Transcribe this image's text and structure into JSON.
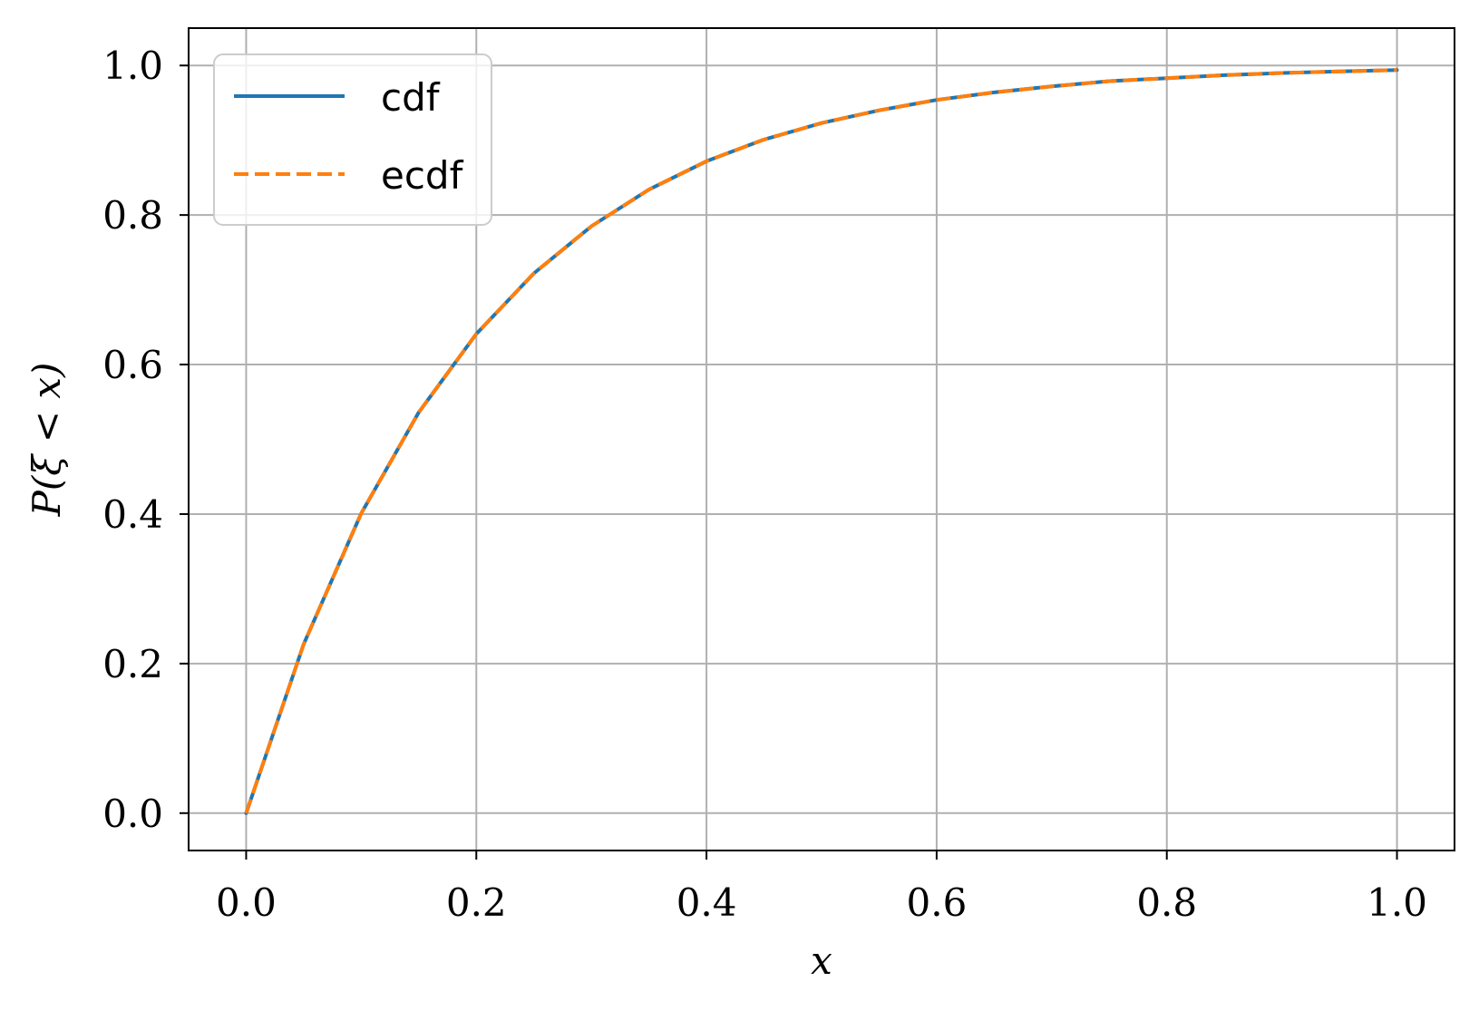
{
  "chart_data": {
    "type": "line",
    "xlabel": "x",
    "ylabel": "P(ξ < x)",
    "xlim": [
      -0.05,
      1.05
    ],
    "ylim": [
      -0.05,
      1.05
    ],
    "xticks": [
      0.0,
      0.2,
      0.4,
      0.6,
      0.8,
      1.0
    ],
    "yticks": [
      0.0,
      0.2,
      0.4,
      0.6,
      0.8,
      1.0
    ],
    "xtick_labels": [
      "0.0",
      "0.2",
      "0.4",
      "0.6",
      "0.8",
      "1.0"
    ],
    "ytick_labels": [
      "0.0",
      "0.2",
      "0.4",
      "0.6",
      "0.8",
      "1.0"
    ],
    "grid": true,
    "legend_position": "top-left",
    "series": [
      {
        "name": "cdf",
        "color": "#1f77b4",
        "style": "solid",
        "x": [
          0.0,
          0.05,
          0.1,
          0.15,
          0.2,
          0.25,
          0.3,
          0.35,
          0.4,
          0.45,
          0.5,
          0.55,
          0.6,
          0.65,
          0.7,
          0.75,
          0.8,
          0.85,
          0.9,
          0.95,
          1.0
        ],
        "y": [
          0.0,
          0.226,
          0.401,
          0.536,
          0.641,
          0.722,
          0.785,
          0.834,
          0.872,
          0.901,
          0.923,
          0.94,
          0.954,
          0.964,
          0.972,
          0.979,
          0.983,
          0.987,
          0.99,
          0.992,
          0.994
        ]
      },
      {
        "name": "ecdf",
        "color": "#ff7f0e",
        "style": "dashed",
        "x": [
          0.0,
          0.05,
          0.1,
          0.15,
          0.2,
          0.25,
          0.3,
          0.35,
          0.4,
          0.45,
          0.5,
          0.55,
          0.6,
          0.65,
          0.7,
          0.75,
          0.8,
          0.85,
          0.9,
          0.95,
          1.0
        ],
        "y": [
          0.0,
          0.226,
          0.401,
          0.536,
          0.641,
          0.722,
          0.785,
          0.834,
          0.872,
          0.901,
          0.923,
          0.94,
          0.954,
          0.964,
          0.972,
          0.979,
          0.983,
          0.987,
          0.99,
          0.992,
          0.994
        ]
      }
    ]
  }
}
